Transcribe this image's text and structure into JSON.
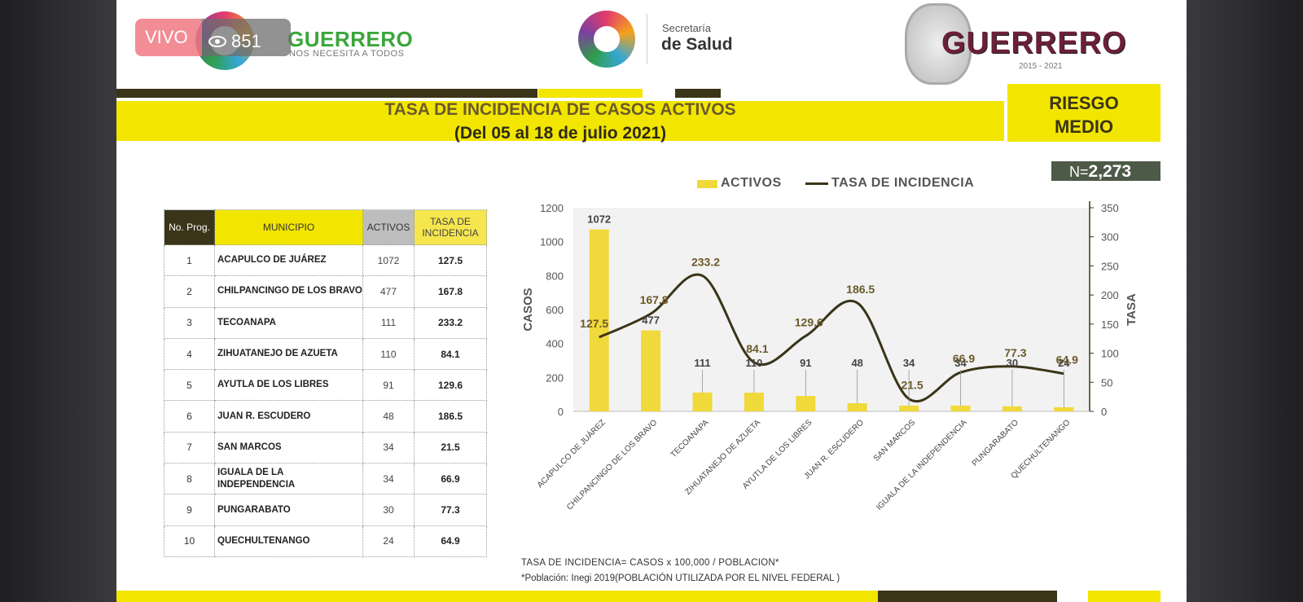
{
  "overlay": {
    "live_label": "VIVO",
    "viewer_count": "851"
  },
  "header": {
    "left_logo_text": "GUERRERO",
    "left_logo_sub": "NOS NECESITA A TODOS",
    "center_small": "Secretaría",
    "center_big": "de Salud",
    "right_logo_text": "GUERRERO",
    "right_years": "2015 - 2021"
  },
  "title": {
    "line1": "TASA DE INCIDENCIA DE CASOS ACTIVOS",
    "line2": "(Del 05 al 18 de julio 2021)",
    "risk_line1": "RIESGO",
    "risk_line2": "MEDIO",
    "n_prefix": "N=",
    "n_value": "2,273"
  },
  "table": {
    "headers": {
      "no": "No. Prog.",
      "municipio": "MUNICIPIO",
      "activos": "ACTIVOS",
      "tasa": "TASA DE INCIDENCIA"
    },
    "rows": [
      {
        "no": "1",
        "municipio": "ACAPULCO DE JUÁREZ",
        "activos": "1072",
        "tasa": "127.5"
      },
      {
        "no": "2",
        "municipio": "CHILPANCINGO DE LOS BRAVO",
        "activos": "477",
        "tasa": "167.8"
      },
      {
        "no": "3",
        "municipio": "TECOANAPA",
        "activos": "111",
        "tasa": "233.2"
      },
      {
        "no": "4",
        "municipio": "ZIHUATANEJO DE AZUETA",
        "activos": "110",
        "tasa": "84.1"
      },
      {
        "no": "5",
        "municipio": "AYUTLA DE LOS LIBRES",
        "activos": "91",
        "tasa": "129.6"
      },
      {
        "no": "6",
        "municipio": "JUAN R. ESCUDERO",
        "activos": "48",
        "tasa": "186.5"
      },
      {
        "no": "7",
        "municipio": "SAN MARCOS",
        "activos": "34",
        "tasa": "21.5"
      },
      {
        "no": "8",
        "municipio": "IGUALA DE LA INDEPENDENCIA",
        "activos": "34",
        "tasa": "66.9"
      },
      {
        "no": "9",
        "municipio": "PUNGARABATO",
        "activos": "30",
        "tasa": "77.3"
      },
      {
        "no": "10",
        "municipio": "QUECHULTENANGO",
        "activos": "24",
        "tasa": "64.9"
      }
    ]
  },
  "footnotes": {
    "line1": "TASA DE INCIDENCIA= CASOS x 100,000 / POBLACION*",
    "line2": "*Población: Inegi 2019(POBLACIÓN UTILIZADA POR EL NIVEL FEDERAL )"
  },
  "colors": {
    "yellow": "#f2e600",
    "bar": "#f0d93a",
    "line": "#3a3418",
    "dark": "#3a3418"
  },
  "chart_data": {
    "type": "bar",
    "categories": [
      "ACAPULCO DE JUÁREZ",
      "CHILPANCINGO DE LOS BRAVO",
      "TECOANAPA",
      "ZIHUATANEJO DE AZUETA",
      "AYUTLA DE LOS LIBRES",
      "JUAN R. ESCUDERO",
      "SAN MARCOS",
      "IGUALA DE LA INDEPENDENCIA",
      "PUNGARABATO",
      "QUECHULTENANGO"
    ],
    "series": [
      {
        "name": "ACTIVOS",
        "type": "bar",
        "axis": "left",
        "values": [
          1072,
          477,
          111,
          110,
          91,
          48,
          34,
          34,
          30,
          24
        ]
      },
      {
        "name": "TASA DE INCIDENCIA",
        "type": "line",
        "axis": "right",
        "values": [
          127.5,
          167.8,
          233.2,
          84.1,
          129.6,
          186.5,
          21.5,
          66.9,
          77.3,
          64.9
        ]
      }
    ],
    "ylabel": "CASOS",
    "y2label": "TASA",
    "ylim": [
      0,
      1200
    ],
    "y2lim": [
      0,
      350
    ],
    "yticks": [
      0,
      200,
      400,
      600,
      800,
      1000,
      1200
    ],
    "y2ticks": [
      0,
      50,
      100,
      150,
      200,
      250,
      300,
      350
    ],
    "legend": "top",
    "grid": false
  }
}
